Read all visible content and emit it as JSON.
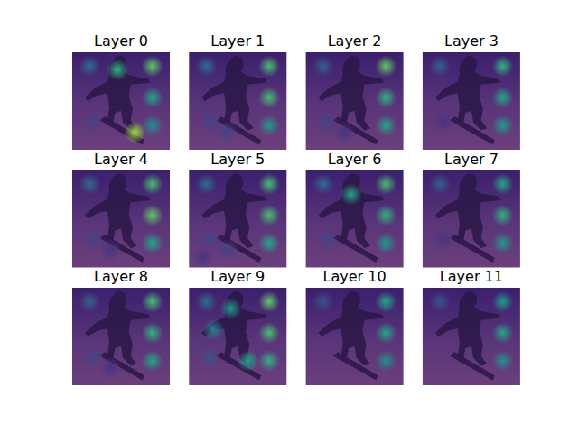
{
  "chart_data": [
    {
      "type": "heatmap",
      "title": "Layer 0",
      "x": [
        2.5,
        11.5,
        11.5,
        11.5,
        6.5,
        9.0,
        3.0
      ],
      "y": [
        2.0,
        2.0,
        6.5,
        10.5,
        2.5,
        11.5,
        10.0
      ],
      "values": [
        0.35,
        0.75,
        0.6,
        0.5,
        0.65,
        0.85,
        0.2
      ],
      "xlim": [
        0,
        14
      ],
      "ylim": [
        0,
        14
      ],
      "zlim": [
        0,
        1
      ],
      "tick_labels": false
    },
    {
      "type": "heatmap",
      "title": "Layer 1",
      "x": [
        2.5,
        11.5,
        11.5,
        11.5,
        3.0,
        5.5
      ],
      "y": [
        2.0,
        2.0,
        6.5,
        10.5,
        10.0,
        11.5
      ],
      "values": [
        0.35,
        0.7,
        0.7,
        0.55,
        0.2,
        0.2
      ],
      "xlim": [
        0,
        14
      ],
      "ylim": [
        0,
        14
      ],
      "zlim": [
        0,
        1
      ],
      "tick_labels": false
    },
    {
      "type": "heatmap",
      "title": "Layer 2",
      "x": [
        2.5,
        11.5,
        11.5,
        11.5,
        3.0,
        5.5
      ],
      "y": [
        2.0,
        2.0,
        6.5,
        10.5,
        10.0,
        11.5
      ],
      "values": [
        0.3,
        0.75,
        0.65,
        0.6,
        0.2,
        0.15
      ],
      "xlim": [
        0,
        14
      ],
      "ylim": [
        0,
        14
      ],
      "zlim": [
        0,
        1
      ],
      "tick_labels": false
    },
    {
      "type": "heatmap",
      "title": "Layer 3",
      "x": [
        2.5,
        11.5,
        11.5,
        11.5,
        3.0
      ],
      "y": [
        2.0,
        2.0,
        6.5,
        10.5,
        10.0
      ],
      "values": [
        0.3,
        0.65,
        0.6,
        0.55,
        0.15
      ],
      "xlim": [
        0,
        14
      ],
      "ylim": [
        0,
        14
      ],
      "zlim": [
        0,
        1
      ],
      "tick_labels": false
    },
    {
      "type": "heatmap",
      "title": "Layer 4",
      "x": [
        2.5,
        11.5,
        11.5,
        11.5,
        3.0,
        5.5
      ],
      "y": [
        2.0,
        2.0,
        6.5,
        10.5,
        10.0,
        11.5
      ],
      "values": [
        0.35,
        0.7,
        0.75,
        0.6,
        0.2,
        0.15
      ],
      "xlim": [
        0,
        14
      ],
      "ylim": [
        0,
        14
      ],
      "zlim": [
        0,
        1
      ],
      "tick_labels": false
    },
    {
      "type": "heatmap",
      "title": "Layer 5",
      "x": [
        2.5,
        11.5,
        11.5,
        11.5,
        3.0,
        5.5,
        2.0
      ],
      "y": [
        2.0,
        2.0,
        6.5,
        10.5,
        10.0,
        11.5,
        12.5
      ],
      "values": [
        0.35,
        0.7,
        0.7,
        0.6,
        0.2,
        0.2,
        0.15
      ],
      "xlim": [
        0,
        14
      ],
      "ylim": [
        0,
        14
      ],
      "zlim": [
        0,
        1
      ],
      "tick_labels": false
    },
    {
      "type": "heatmap",
      "title": "Layer 6",
      "x": [
        2.5,
        11.5,
        11.5,
        11.5,
        6.5,
        3.0
      ],
      "y": [
        2.0,
        2.0,
        6.5,
        10.5,
        3.5,
        10.0
      ],
      "values": [
        0.35,
        0.7,
        0.65,
        0.55,
        0.6,
        0.2
      ],
      "xlim": [
        0,
        14
      ],
      "ylim": [
        0,
        14
      ],
      "zlim": [
        0,
        1
      ],
      "tick_labels": false
    },
    {
      "type": "heatmap",
      "title": "Layer 7",
      "x": [
        2.5,
        11.5,
        11.5,
        11.5,
        3.0
      ],
      "y": [
        2.0,
        2.0,
        6.5,
        10.5,
        10.0
      ],
      "values": [
        0.3,
        0.6,
        0.65,
        0.55,
        0.15
      ],
      "xlim": [
        0,
        14
      ],
      "ylim": [
        0,
        14
      ],
      "zlim": [
        0,
        1
      ],
      "tick_labels": false
    },
    {
      "type": "heatmap",
      "title": "Layer 8",
      "x": [
        2.5,
        11.5,
        11.5,
        11.5,
        3.0,
        5.5
      ],
      "y": [
        2.0,
        2.0,
        6.5,
        10.5,
        10.0,
        11.5
      ],
      "values": [
        0.3,
        0.7,
        0.65,
        0.6,
        0.2,
        0.15
      ],
      "xlim": [
        0,
        14
      ],
      "ylim": [
        0,
        14
      ],
      "zlim": [
        0,
        1
      ],
      "tick_labels": false
    },
    {
      "type": "heatmap",
      "title": "Layer 9",
      "x": [
        2.5,
        11.5,
        11.5,
        11.5,
        6.0,
        3.5,
        8.5,
        3.0
      ],
      "y": [
        2.0,
        2.0,
        6.5,
        10.5,
        3.0,
        6.0,
        10.5,
        10.0
      ],
      "values": [
        0.35,
        0.75,
        0.7,
        0.65,
        0.55,
        0.45,
        0.6,
        0.25
      ],
      "xlim": [
        0,
        14
      ],
      "ylim": [
        0,
        14
      ],
      "zlim": [
        0,
        1
      ],
      "tick_labels": false
    },
    {
      "type": "heatmap",
      "title": "Layer 10",
      "x": [
        2.5,
        11.5,
        11.5,
        11.5
      ],
      "y": [
        2.0,
        2.0,
        6.5,
        10.5
      ],
      "values": [
        0.25,
        0.6,
        0.6,
        0.5
      ],
      "xlim": [
        0,
        14
      ],
      "ylim": [
        0,
        14
      ],
      "zlim": [
        0,
        1
      ],
      "tick_labels": false
    },
    {
      "type": "heatmap",
      "title": "Layer 11",
      "x": [
        2.5,
        11.5,
        11.5,
        11.5
      ],
      "y": [
        2.0,
        2.0,
        6.5,
        10.5
      ],
      "values": [
        0.25,
        0.55,
        0.6,
        0.5
      ],
      "xlim": [
        0,
        14
      ],
      "ylim": [
        0,
        14
      ],
      "zlim": [
        0,
        1
      ],
      "tick_labels": false
    }
  ]
}
